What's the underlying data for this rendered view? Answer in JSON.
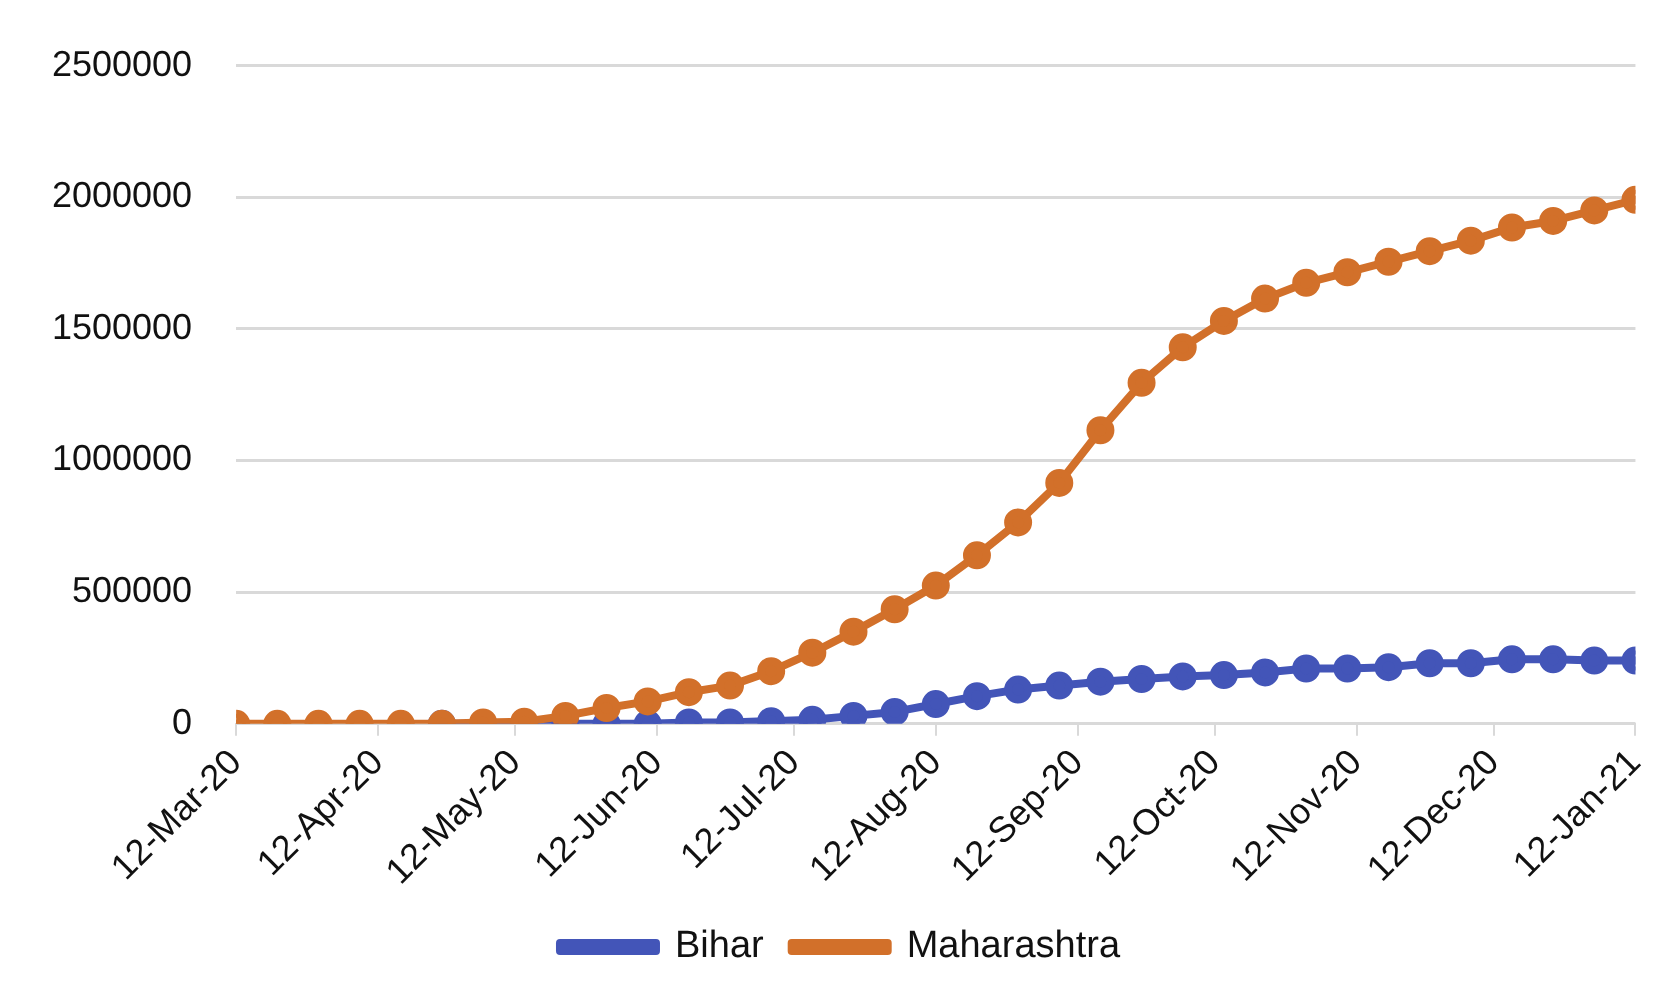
{
  "chart_data": {
    "type": "line",
    "x": [
      "2020-03-12",
      "2020-03-21",
      "2020-03-30",
      "2020-04-08",
      "2020-04-17",
      "2020-04-26",
      "2020-05-05",
      "2020-05-14",
      "2020-05-23",
      "2020-06-01",
      "2020-06-10",
      "2020-06-19",
      "2020-06-28",
      "2020-07-07",
      "2020-07-16",
      "2020-07-25",
      "2020-08-03",
      "2020-08-12",
      "2020-08-21",
      "2020-08-30",
      "2020-09-08",
      "2020-09-17",
      "2020-09-26",
      "2020-10-05",
      "2020-10-14",
      "2020-10-23",
      "2020-11-01",
      "2020-11-10",
      "2020-11-19",
      "2020-11-28",
      "2020-12-07",
      "2020-12-16",
      "2020-12-25",
      "2021-01-03",
      "2021-01-12"
    ],
    "series": [
      {
        "name": "Bihar",
        "color": "#4355b8",
        "values": [
          null,
          null,
          null,
          null,
          null,
          0,
          0,
          0,
          0,
          0,
          0,
          5000,
          5000,
          10000,
          15000,
          30000,
          45000,
          75000,
          105000,
          130000,
          145000,
          160000,
          170000,
          180000,
          185000,
          195000,
          210000,
          210000,
          215000,
          230000,
          230000,
          245000,
          245000,
          240000,
          240000
        ]
      },
      {
        "name": "Maharashtra",
        "color": "#d2702a",
        "values": [
          0,
          0,
          0,
          0,
          0,
          0,
          5000,
          8000,
          30000,
          60000,
          85000,
          120000,
          145000,
          200000,
          270000,
          350000,
          435000,
          525000,
          640000,
          765000,
          915000,
          1115000,
          1295000,
          1430000,
          1530000,
          1615000,
          1675000,
          1715000,
          1755000,
          1795000,
          1835000,
          1885000,
          1910000,
          1950000,
          1990000
        ]
      }
    ],
    "xlim": [
      "2020-03-12",
      "2021-01-12"
    ],
    "xticks": [
      {
        "value": "2020-03-12",
        "label": "12-Mar-20"
      },
      {
        "value": "2020-04-12",
        "label": "12-Apr-20"
      },
      {
        "value": "2020-05-12",
        "label": "12-May-20"
      },
      {
        "value": "2020-06-12",
        "label": "12-Jun-20"
      },
      {
        "value": "2020-07-12",
        "label": "12-Jul-20"
      },
      {
        "value": "2020-08-12",
        "label": "12-Aug-20"
      },
      {
        "value": "2020-09-12",
        "label": "12-Sep-20"
      },
      {
        "value": "2020-10-12",
        "label": "12-Oct-20"
      },
      {
        "value": "2020-11-12",
        "label": "12-Nov-20"
      },
      {
        "value": "2020-12-12",
        "label": "12-Dec-20"
      },
      {
        "value": "2021-01-12",
        "label": "12-Jan-21"
      }
    ],
    "ylim": [
      0,
      2500000
    ],
    "yticks": [
      0,
      500000,
      1000000,
      1500000,
      2000000,
      2500000
    ],
    "grid": "y",
    "legend": "bottom",
    "marker": "circle",
    "line_style": "solid"
  }
}
